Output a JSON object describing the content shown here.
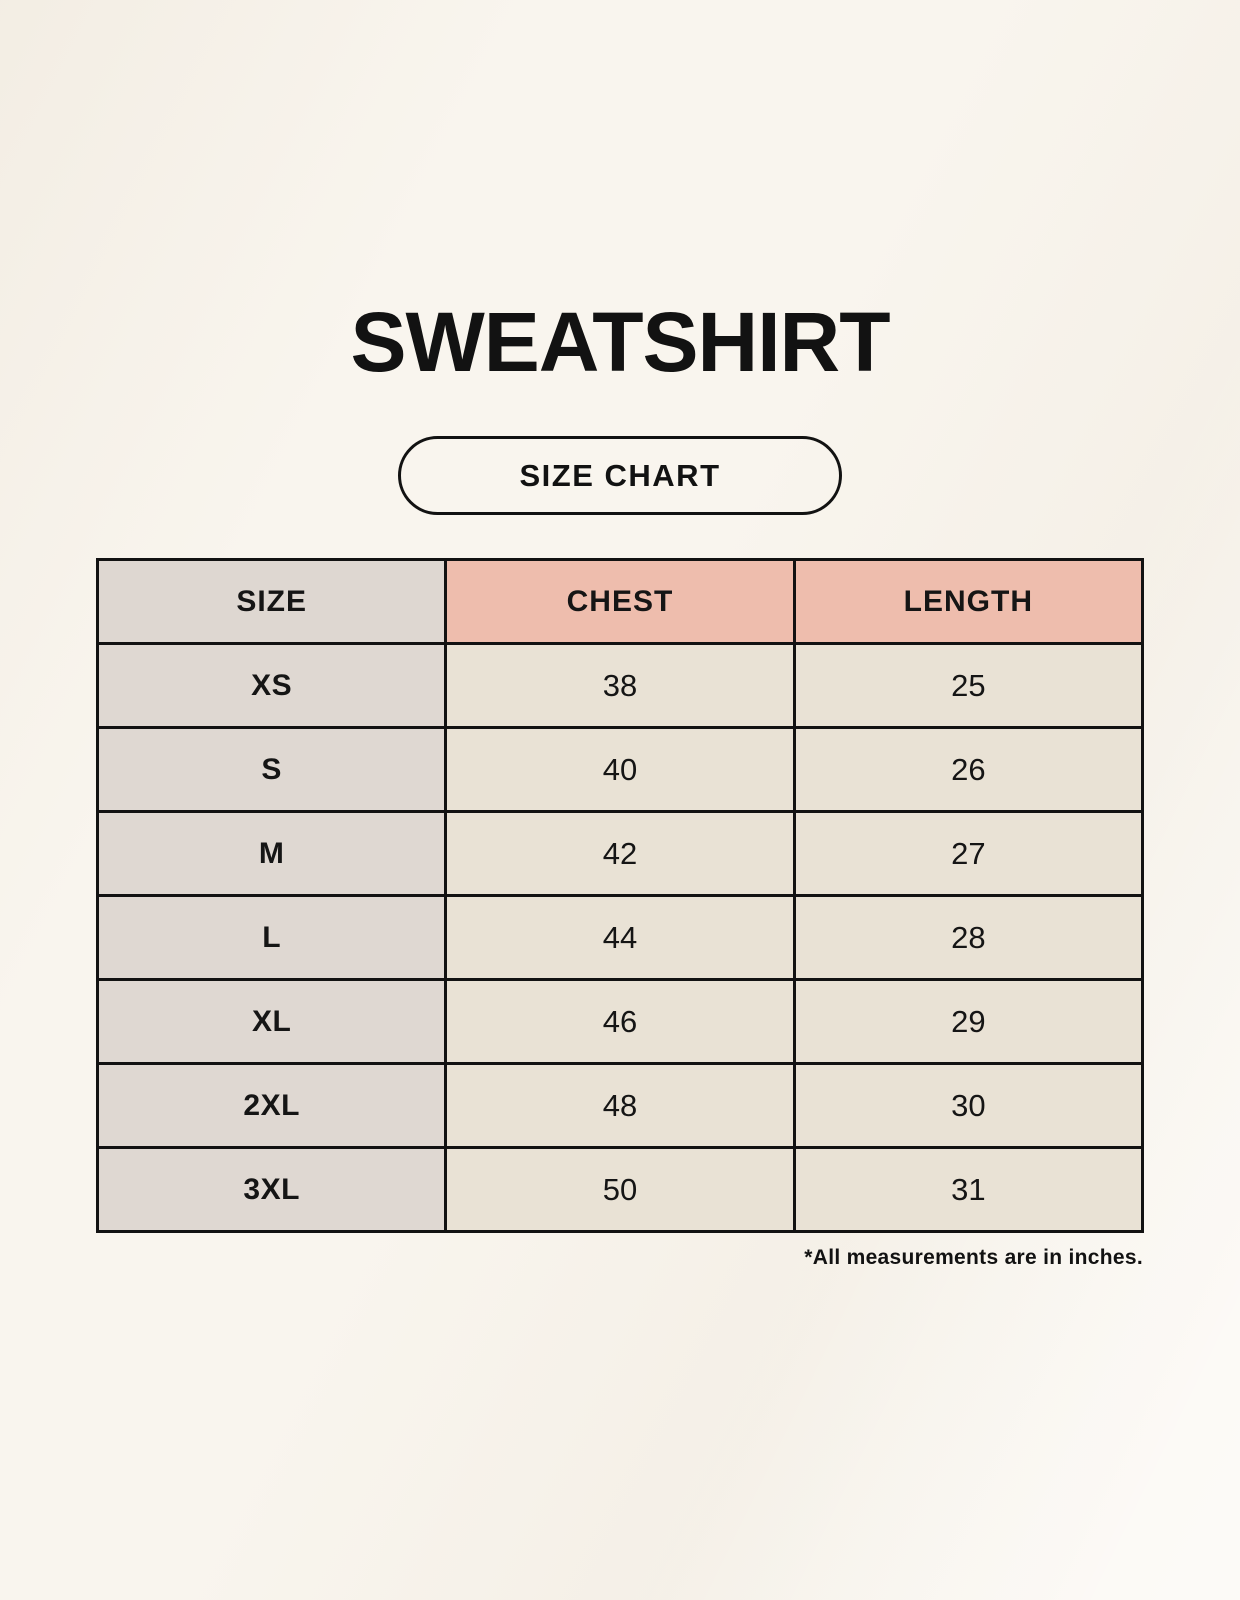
{
  "header": {
    "title": "SWEATSHIRT",
    "badge_label": "SIZE CHART"
  },
  "colors": {
    "page_background": "#F9F5EE",
    "header_label_bg": "#DED7D1",
    "header_accent_bg": "#EEBDAD",
    "row_label_bg": "#DFD8D2",
    "row_value_bg": "#E9E2D5",
    "table_border": "#121212",
    "text": "#121212"
  },
  "chart_data": {
    "type": "table",
    "title": "SWEATSHIRT",
    "subtitle": "SIZE CHART",
    "units": "inches",
    "columns": [
      "SIZE",
      "CHEST",
      "LENGTH"
    ],
    "rows": [
      [
        "XS",
        38,
        25
      ],
      [
        "S",
        40,
        26
      ],
      [
        "M",
        42,
        27
      ],
      [
        "L",
        44,
        28
      ],
      [
        "XL",
        46,
        29
      ],
      [
        "2XL",
        48,
        30
      ],
      [
        "3XL",
        50,
        31
      ]
    ],
    "note": "*All measurements are in inches."
  }
}
